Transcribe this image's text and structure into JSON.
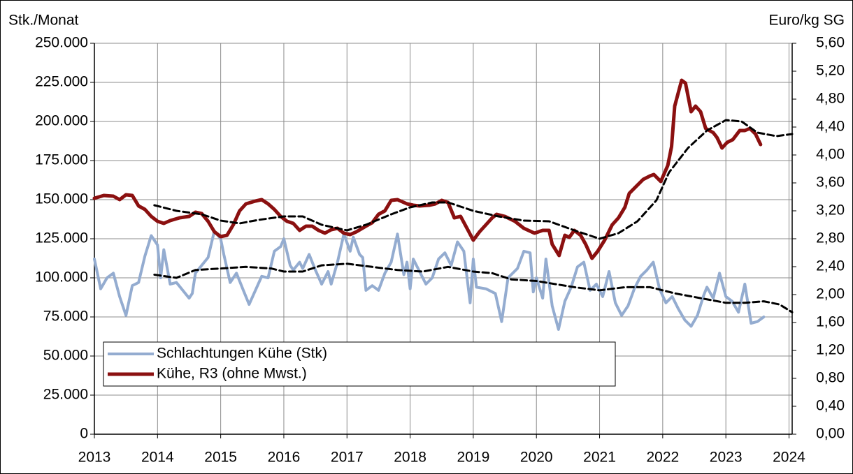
{
  "chart_data": {
    "type": "line",
    "ylabel": "Stk./Monat",
    "y2label": "Euro/kg SG",
    "xlim": [
      2013,
      2024.05
    ],
    "xticks": [
      2013,
      2014,
      2015,
      2016,
      2017,
      2018,
      2019,
      2020,
      2021,
      2022,
      2023,
      2024
    ],
    "ylim": [
      0,
      250000
    ],
    "yticks": [
      0,
      {
        "value": 25000,
        "label": "25.000"
      },
      {
        "value": 50000,
        "label": "50.000"
      },
      {
        "value": 75000,
        "label": "75.000"
      },
      {
        "value": 100000,
        "label": "100.000"
      },
      {
        "value": 125000,
        "label": "125.000"
      },
      {
        "value": 150000,
        "label": "150.000"
      },
      {
        "value": 175000,
        "label": "175.000"
      },
      {
        "value": 200000,
        "label": "200.000"
      },
      {
        "value": 225000,
        "label": "225.000"
      },
      {
        "value": 250000,
        "label": "250.000"
      }
    ],
    "y2lim": [
      0,
      5.6
    ],
    "y2ticks": [
      {
        "value": 0,
        "label": "0,00"
      },
      {
        "value": 0.4,
        "label": "0,40"
      },
      {
        "value": 0.8,
        "label": "0,80"
      },
      {
        "value": 1.2,
        "label": "1,20"
      },
      {
        "value": 1.6,
        "label": "1,60"
      },
      {
        "value": 2.0,
        "label": "2,00"
      },
      {
        "value": 2.4,
        "label": "2,40"
      },
      {
        "value": 2.8,
        "label": "2,80"
      },
      {
        "value": 3.2,
        "label": "3,20"
      },
      {
        "value": 3.6,
        "label": "3,60"
      },
      {
        "value": 4.0,
        "label": "4,00"
      },
      {
        "value": 4.4,
        "label": "4,40"
      },
      {
        "value": 4.8,
        "label": "4,80"
      },
      {
        "value": 5.2,
        "label": "5,20"
      },
      {
        "value": 5.6,
        "label": "5,60"
      }
    ],
    "grid": true,
    "legend": "lower left",
    "series": [
      {
        "name": "Schlachtungen Kühe (Stk)",
        "color": "#94acd0",
        "width": 4,
        "x": [
          2013.0,
          2013.1,
          2013.2,
          2013.3,
          2013.4,
          2013.5,
          2013.6,
          2013.7,
          2013.8,
          2013.9,
          2014.0,
          2014.05,
          2014.1,
          2014.2,
          2014.3,
          2014.4,
          2014.5,
          2014.55,
          2014.6,
          2014.7,
          2014.8,
          2014.9,
          2015.0,
          2015.05,
          2015.15,
          2015.25,
          2015.35,
          2015.45,
          2015.55,
          2015.65,
          2015.75,
          2015.85,
          2015.95,
          2016.0,
          2016.1,
          2016.15,
          2016.25,
          2016.3,
          2016.4,
          2016.5,
          2016.6,
          2016.7,
          2016.75,
          2016.85,
          2016.95,
          2017.05,
          2017.1,
          2017.2,
          2017.25,
          2017.3,
          2017.4,
          2017.5,
          2017.6,
          2017.7,
          2017.8,
          2017.9,
          2017.95,
          2018.0,
          2018.05,
          2018.15,
          2018.25,
          2018.35,
          2018.45,
          2018.55,
          2018.65,
          2018.75,
          2018.85,
          2018.95,
          2019.0,
          2019.05,
          2019.2,
          2019.35,
          2019.45,
          2019.55,
          2019.7,
          2019.8,
          2019.9,
          2019.95,
          2020.0,
          2020.1,
          2020.15,
          2020.25,
          2020.35,
          2020.45,
          2020.55,
          2020.65,
          2020.75,
          2020.85,
          2020.95,
          2021.05,
          2021.15,
          2021.25,
          2021.35,
          2021.45,
          2021.55,
          2021.65,
          2021.75,
          2021.85,
          2021.95,
          2022.05,
          2022.15,
          2022.25,
          2022.35,
          2022.45,
          2022.55,
          2022.65,
          2022.7,
          2022.8,
          2022.9,
          2023.0,
          2023.1,
          2023.2,
          2023.3,
          2023.4,
          2023.5,
          2023.6
        ],
        "values": [
          112000,
          93000,
          100000,
          103000,
          88000,
          76000,
          95000,
          97000,
          114000,
          127000,
          121000,
          100000,
          118000,
          96000,
          97000,
          92000,
          87000,
          90000,
          103000,
          108000,
          113000,
          130000,
          125000,
          115000,
          97000,
          103000,
          93000,
          83000,
          92000,
          101000,
          100000,
          117000,
          120000,
          125000,
          108000,
          105000,
          110000,
          106000,
          115000,
          105000,
          96000,
          104000,
          96000,
          110000,
          128000,
          117000,
          126000,
          115000,
          113000,
          92000,
          95000,
          92000,
          103000,
          110000,
          128000,
          102000,
          110000,
          93000,
          112000,
          104000,
          96000,
          100000,
          112000,
          116000,
          108000,
          123000,
          117000,
          84000,
          112000,
          94000,
          93000,
          90000,
          72000,
          100000,
          106000,
          117000,
          116000,
          91000,
          100000,
          87000,
          112000,
          82000,
          67000,
          85000,
          94000,
          107000,
          110000,
          92000,
          96000,
          88000,
          104000,
          84000,
          76000,
          82000,
          93000,
          101000,
          105000,
          110000,
          93000,
          84000,
          88000,
          80000,
          73000,
          69000,
          76000,
          89000,
          94000,
          87000,
          103000,
          88000,
          85000,
          78000,
          96000,
          71000,
          72000,
          75000
        ]
      },
      {
        "name": "Kühe, R3 (ohne Mwst.)",
        "color": "#8b1010",
        "width": 5,
        "axis": "y2",
        "x": [
          2013.0,
          2013.15,
          2013.3,
          2013.4,
          2013.5,
          2013.6,
          2013.7,
          2013.8,
          2013.9,
          2014.0,
          2014.1,
          2014.2,
          2014.35,
          2014.5,
          2014.6,
          2014.7,
          2014.8,
          2014.9,
          2015.0,
          2015.1,
          2015.2,
          2015.3,
          2015.4,
          2015.55,
          2015.65,
          2015.75,
          2015.85,
          2015.95,
          2016.05,
          2016.15,
          2016.25,
          2016.35,
          2016.45,
          2016.55,
          2016.65,
          2016.75,
          2016.85,
          2016.95,
          2017.05,
          2017.15,
          2017.3,
          2017.4,
          2017.5,
          2017.6,
          2017.7,
          2017.8,
          2017.95,
          2018.05,
          2018.15,
          2018.3,
          2018.4,
          2018.5,
          2018.6,
          2018.7,
          2018.8,
          2018.9,
          2019.0,
          2019.1,
          2019.2,
          2019.3,
          2019.37,
          2019.5,
          2019.66,
          2019.8,
          2019.97,
          2020.1,
          2020.2,
          2020.25,
          2020.36,
          2020.45,
          2020.52,
          2020.6,
          2020.7,
          2020.78,
          2020.88,
          2020.97,
          2021.08,
          2021.2,
          2021.3,
          2021.4,
          2021.47,
          2021.58,
          2021.69,
          2021.8,
          2021.86,
          2021.97,
          2022.08,
          2022.14,
          2022.19,
          2022.3,
          2022.36,
          2022.45,
          2022.52,
          2022.6,
          2022.68,
          2022.8,
          2022.86,
          2022.94,
          2023.02,
          2023.11,
          2023.22,
          2023.3,
          2023.38,
          2023.47,
          2023.55
        ],
        "values": [
          3.38,
          3.42,
          3.41,
          3.36,
          3.43,
          3.42,
          3.27,
          3.22,
          3.12,
          3.05,
          3.02,
          3.06,
          3.1,
          3.12,
          3.18,
          3.16,
          3.05,
          2.9,
          2.83,
          2.85,
          3.0,
          3.2,
          3.3,
          3.34,
          3.36,
          3.3,
          3.22,
          3.12,
          3.05,
          3.02,
          2.92,
          2.98,
          2.98,
          2.92,
          2.88,
          2.93,
          2.95,
          2.88,
          2.86,
          2.9,
          2.98,
          3.03,
          3.15,
          3.2,
          3.35,
          3.36,
          3.3,
          3.28,
          3.27,
          3.28,
          3.3,
          3.35,
          3.32,
          3.1,
          3.12,
          2.95,
          2.78,
          2.9,
          3.0,
          3.1,
          3.15,
          3.12,
          3.05,
          2.95,
          2.88,
          2.92,
          2.92,
          2.72,
          2.56,
          2.85,
          2.82,
          2.92,
          2.85,
          2.72,
          2.52,
          2.62,
          2.78,
          3.0,
          3.1,
          3.25,
          3.45,
          3.55,
          3.65,
          3.7,
          3.72,
          3.62,
          3.85,
          4.12,
          4.7,
          5.07,
          5.03,
          4.62,
          4.7,
          4.62,
          4.38,
          4.32,
          4.25,
          4.1,
          4.18,
          4.22,
          4.35,
          4.35,
          4.38,
          4.3,
          4.15
        ]
      },
      {
        "color": "#000000",
        "width": 3,
        "dash": true,
        "axis": "y2",
        "x": [
          2013.95,
          2014.3,
          2014.7,
          2015.0,
          2015.3,
          2015.6,
          2016.0,
          2016.3,
          2016.6,
          2017.0,
          2017.3,
          2017.7,
          2018.0,
          2018.35,
          2018.6,
          2019.0,
          2019.4,
          2019.8,
          2020.2,
          2020.6,
          2021.0,
          2021.3,
          2021.6,
          2021.9,
          2022.1,
          2022.4,
          2022.7,
          2023.0,
          2023.25,
          2023.5,
          2023.8,
          2024.05
        ],
        "values": [
          3.28,
          3.2,
          3.15,
          3.06,
          3.02,
          3.07,
          3.12,
          3.12,
          3.0,
          2.92,
          3.0,
          3.15,
          3.25,
          3.32,
          3.32,
          3.2,
          3.12,
          3.06,
          3.05,
          2.92,
          2.8,
          2.88,
          3.05,
          3.35,
          3.75,
          4.1,
          4.35,
          4.5,
          4.48,
          4.32,
          4.27,
          4.3
        ]
      },
      {
        "color": "#000000",
        "width": 3,
        "dash": true,
        "x": [
          2013.95,
          2014.3,
          2014.6,
          2015.0,
          2015.4,
          2015.8,
          2016.0,
          2016.3,
          2016.6,
          2017.0,
          2017.4,
          2017.8,
          2018.2,
          2018.6,
          2019.0,
          2019.3,
          2019.6,
          2020.0,
          2020.3,
          2020.6,
          2021.0,
          2021.4,
          2021.8,
          2022.2,
          2022.6,
          2023.0,
          2023.3,
          2023.6,
          2023.85,
          2024.05
        ],
        "values": [
          102000,
          100000,
          105000,
          106000,
          107000,
          106000,
          104000,
          104000,
          108000,
          109000,
          107000,
          105000,
          104000,
          107000,
          104000,
          103000,
          99000,
          98000,
          96000,
          94000,
          92000,
          94000,
          94000,
          90000,
          87000,
          84000,
          84000,
          85000,
          83000,
          78000
        ]
      }
    ]
  }
}
